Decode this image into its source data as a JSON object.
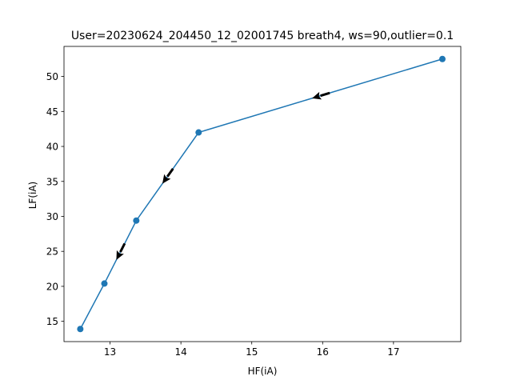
{
  "chart_data": {
    "type": "line",
    "title": "User=20230624_204450_12_02001745 breath4, ws=90,outlier=0.1",
    "xlabel": "HF(iA)",
    "ylabel": "LF(iA)",
    "xlim": [
      12.35,
      17.95
    ],
    "ylim": [
      12.1,
      54.3
    ],
    "xticks": [
      13,
      14,
      15,
      16,
      17
    ],
    "yticks": [
      15,
      20,
      25,
      30,
      35,
      40,
      45,
      50
    ],
    "grid": false,
    "series": [
      {
        "color": "#1f77b4",
        "marker": "circle",
        "points": [
          {
            "x": 17.69,
            "y": 52.5
          },
          {
            "x": 14.25,
            "y": 42.0
          },
          {
            "x": 13.37,
            "y": 29.4
          },
          {
            "x": 12.92,
            "y": 20.4
          },
          {
            "x": 12.58,
            "y": 13.9
          }
        ]
      }
    ],
    "arrows": {
      "color": "#000000",
      "direction": "from first point toward last point, one arrow at the midpoint of each segment except the last"
    }
  }
}
